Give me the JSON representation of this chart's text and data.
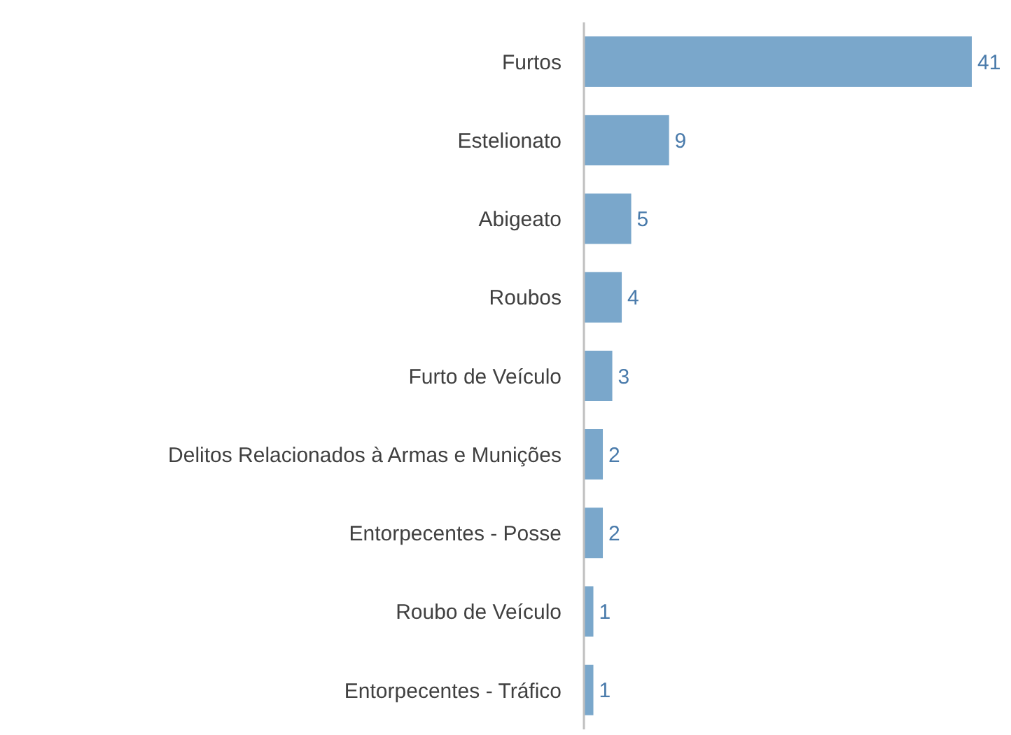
{
  "chart_data": {
    "type": "bar",
    "orientation": "horizontal",
    "categories": [
      "Furtos",
      "Estelionato",
      "Abigeato",
      "Roubos",
      "Furto de Veículo",
      "Delitos Relacionados à Armas e Munições",
      "Entorpecentes - Posse",
      "Roubo de Veículo",
      "Entorpecentes - Tráfico"
    ],
    "values": [
      41,
      9,
      5,
      4,
      3,
      2,
      2,
      1,
      1
    ],
    "color": "#7aa7cb",
    "data_labels": true
  }
}
